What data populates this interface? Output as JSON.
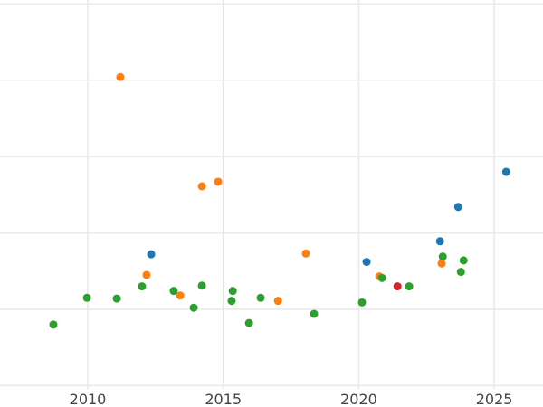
{
  "chart_data": {
    "type": "scatter",
    "title": "",
    "xlabel": "",
    "ylabel": "",
    "xlim": [
      2006.76,
      2026.8
    ],
    "ylim": [
      -1.28,
      4.05
    ],
    "xticks": [
      2010,
      2015,
      2020,
      2025
    ],
    "xtick_labels": [
      "2010",
      "2015",
      "2020",
      "2025"
    ],
    "ygrid": [
      -1,
      0,
      1,
      2,
      3,
      4
    ],
    "grid": true,
    "series": [
      {
        "color": "#1f77b4",
        "points": [
          [
            2012.34,
            0.72
          ],
          [
            2020.29,
            0.62
          ],
          [
            2023.0,
            0.89
          ],
          [
            2023.67,
            1.34
          ],
          [
            2025.44,
            1.8
          ]
        ]
      },
      {
        "color": "#ff7f0e",
        "points": [
          [
            2011.2,
            3.04
          ],
          [
            2012.17,
            0.45
          ],
          [
            2013.41,
            0.18
          ],
          [
            2014.21,
            1.61
          ],
          [
            2014.81,
            1.67
          ],
          [
            2017.02,
            0.11
          ],
          [
            2018.05,
            0.73
          ],
          [
            2020.76,
            0.43
          ],
          [
            2023.06,
            0.6
          ]
        ]
      },
      {
        "color": "#2ca02c",
        "points": [
          [
            2008.73,
            -0.2
          ],
          [
            2009.97,
            0.15
          ],
          [
            2011.07,
            0.14
          ],
          [
            2012.0,
            0.3
          ],
          [
            2013.17,
            0.24
          ],
          [
            2013.91,
            0.02
          ],
          [
            2014.21,
            0.31
          ],
          [
            2015.35,
            0.24
          ],
          [
            2015.31,
            0.11
          ],
          [
            2015.95,
            -0.18
          ],
          [
            2016.38,
            0.15
          ],
          [
            2018.35,
            -0.06
          ],
          [
            2020.12,
            0.09
          ],
          [
            2020.86,
            0.41
          ],
          [
            2021.86,
            0.3
          ],
          [
            2023.1,
            0.69
          ],
          [
            2023.77,
            0.49
          ],
          [
            2023.87,
            0.64
          ]
        ]
      },
      {
        "color": "#d62728",
        "points": [
          [
            2021.43,
            0.3
          ]
        ]
      }
    ]
  }
}
